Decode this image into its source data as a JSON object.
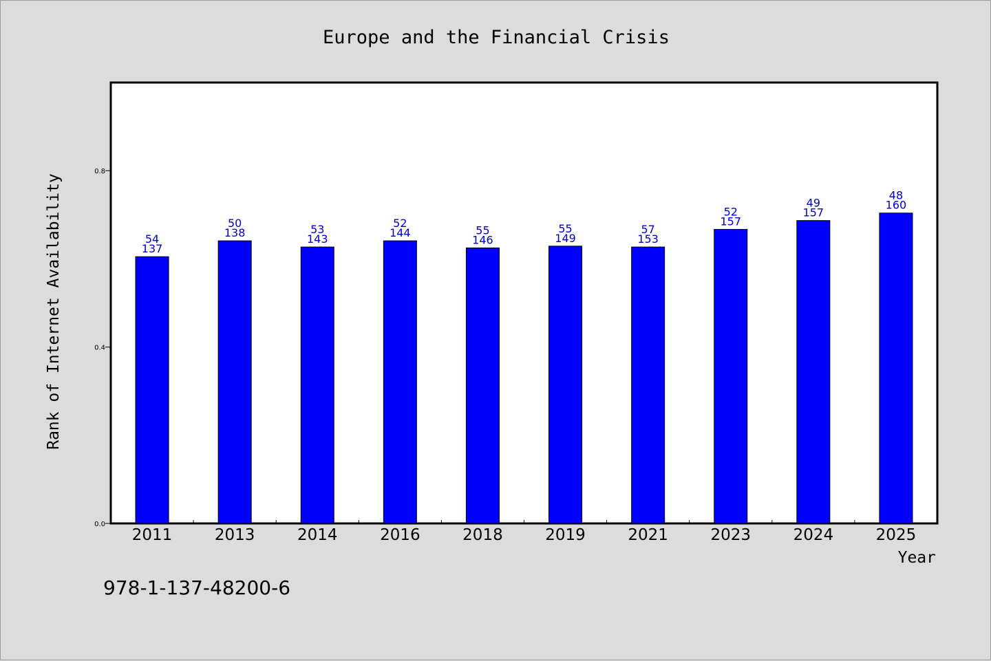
{
  "chart_data": {
    "type": "bar",
    "title": "Europe and the Financial Crisis",
    "xlabel": "Year",
    "ylabel": "Rank of Internet Availability",
    "categories": [
      "2011",
      "2013",
      "2014",
      "2016",
      "2018",
      "2019",
      "2021",
      "2023",
      "2024",
      "2025"
    ],
    "values": [
      0.605,
      0.641,
      0.627,
      0.641,
      0.625,
      0.629,
      0.627,
      0.667,
      0.687,
      0.704
    ],
    "labels_top": [
      "54",
      "50",
      "53",
      "52",
      "55",
      "55",
      "57",
      "52",
      "49",
      "48"
    ],
    "labels_bottom": [
      "137",
      "138",
      "143",
      "144",
      "146",
      "149",
      "153",
      "157",
      "157",
      "160"
    ],
    "ylim": [
      0,
      1.0
    ],
    "yticks": [
      "0.0",
      "0.4",
      "0.8"
    ],
    "ytick_values": [
      0.0,
      0.4,
      0.8
    ],
    "grid": false,
    "bar_color": "#0000ff",
    "label_color": "#0000cc"
  },
  "footer": {
    "isbn": "978-1-137-48200-6"
  }
}
